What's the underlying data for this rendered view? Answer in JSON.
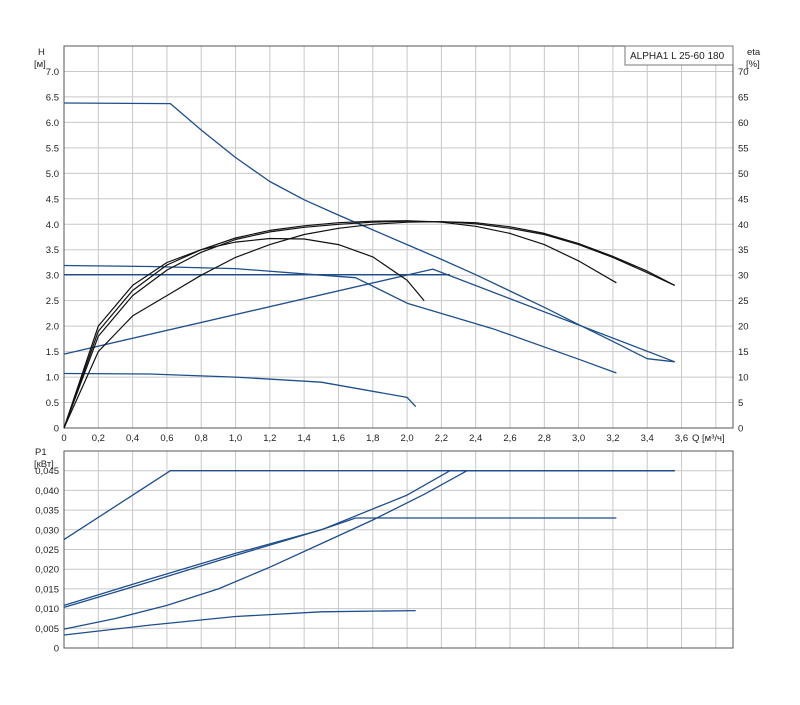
{
  "chart_data": [
    {
      "type": "line",
      "title": "",
      "legend_box": "ALPHA1 L 25-60 180",
      "legend_placement": "top-right",
      "xlabel": "Q [м³/ч]",
      "ylabel_left_name": "H",
      "ylabel_left_unit": "[м]",
      "ylabel_right_name": "eta",
      "ylabel_right_unit": "[%]",
      "xlim": [
        0,
        3.9
      ],
      "ylim": [
        0,
        7.5
      ],
      "y2lim": [
        0,
        75
      ],
      "x_ticks": [
        "0",
        "0,2",
        "0,4",
        "0,6",
        "0,8",
        "1,0",
        "1,2",
        "1,4",
        "1,6",
        "1,8",
        "2,0",
        "2,2",
        "2,4",
        "2,6",
        "2,8",
        "3,0",
        "3,2",
        "3,4",
        "3,6"
      ],
      "y_ticks": [
        "0",
        "0.5",
        "1.0",
        "1.5",
        "2.0",
        "2.5",
        "3.0",
        "3.5",
        "4.0",
        "4.5",
        "5.0",
        "5.5",
        "6.0",
        "6.5",
        "7.0"
      ],
      "y2_ticks": [
        "0",
        "5",
        "10",
        "15",
        "20",
        "25",
        "30",
        "35",
        "40",
        "45",
        "50",
        "55",
        "60",
        "65",
        "70"
      ],
      "grid": true,
      "series": [
        {
          "axis": "left",
          "color": "#1f4e8c",
          "x": [
            0,
            0.62,
            0.8,
            1.0,
            1.2,
            1.4,
            1.6,
            1.8,
            2.0,
            2.2,
            2.4,
            2.6,
            2.8,
            3.0,
            3.2,
            3.4,
            3.56
          ],
          "y": [
            6.38,
            6.37,
            5.85,
            5.31,
            4.84,
            4.48,
            4.18,
            3.89,
            3.6,
            3.31,
            3.01,
            2.69,
            2.37,
            2.03,
            1.7,
            1.36,
            1.3
          ]
        },
        {
          "axis": "left",
          "color": "#1f4e8c",
          "x": [
            0,
            0.5,
            1.0,
            1.5,
            1.7,
            2.0,
            2.5,
            3.0,
            3.22
          ],
          "y": [
            3.19,
            3.17,
            3.13,
            3.0,
            2.95,
            2.45,
            1.95,
            1.35,
            1.08
          ]
        },
        {
          "axis": "left",
          "color": "#1f4e8c",
          "x": [
            0,
            0.5,
            1.0,
            1.5,
            2.0,
            2.05
          ],
          "y": [
            1.07,
            1.06,
            1.0,
            0.9,
            0.6,
            0.42
          ]
        },
        {
          "axis": "left",
          "color": "#1f4e8c",
          "x": [
            0,
            2.25
          ],
          "y": [
            3.01,
            3.01
          ]
        },
        {
          "axis": "left",
          "color": "#1f4e8c",
          "x": [
            0,
            2.15,
            3.56
          ],
          "y": [
            1.45,
            3.12,
            1.3
          ]
        },
        {
          "axis": "right",
          "color": "#111111",
          "x": [
            0,
            0.2,
            0.4,
            0.6,
            0.8,
            1.0,
            1.2,
            1.4,
            1.6,
            1.8,
            2.0,
            2.2,
            2.4,
            2.6,
            2.8,
            3.0,
            3.2,
            3.4,
            3.56
          ],
          "y": [
            0,
            18,
            26,
            31,
            34.5,
            37,
            38.5,
            39.4,
            40,
            40.4,
            40.6,
            40.5,
            40.1,
            39.2,
            38,
            36,
            33.5,
            30.5,
            28
          ]
        },
        {
          "axis": "right",
          "color": "#111111",
          "x": [
            0,
            0.2,
            0.4,
            0.6,
            0.8,
            1.0,
            1.2,
            1.4,
            1.6,
            1.8,
            2.0,
            2.2,
            2.4,
            2.6,
            2.8,
            3.0,
            3.22
          ],
          "y": [
            0,
            19,
            27,
            32,
            35,
            37.3,
            38.8,
            39.7,
            40.3,
            40.6,
            40.7,
            40.4,
            39.6,
            38.2,
            36,
            32.8,
            28.5
          ]
        },
        {
          "axis": "right",
          "color": "#111111",
          "x": [
            0,
            0.2,
            0.4,
            0.6,
            0.8,
            1.0,
            1.2,
            1.4,
            1.6,
            1.8,
            2.0,
            2.1
          ],
          "y": [
            0,
            20,
            28,
            32.5,
            35,
            36.5,
            37.2,
            37.1,
            36,
            33.6,
            29,
            25
          ]
        },
        {
          "axis": "right",
          "color": "#111111",
          "x": [
            0,
            0.2,
            0.4,
            0.6,
            0.8,
            1.0,
            1.2,
            1.4,
            1.6,
            1.8,
            2.0,
            2.2,
            2.4,
            2.6,
            2.8,
            3.0,
            3.2,
            3.4,
            3.56
          ],
          "y": [
            0,
            15,
            22,
            26,
            30,
            33.5,
            36,
            38,
            39.2,
            40,
            40.4,
            40.5,
            40.3,
            39.5,
            38.2,
            36.2,
            33.7,
            30.8,
            28
          ]
        }
      ]
    },
    {
      "type": "line",
      "title": "",
      "xlabel": "",
      "ylabel_name": "P1",
      "ylabel_unit": "[кВт]",
      "xlim": [
        0,
        3.9
      ],
      "ylim": [
        0,
        0.05
      ],
      "y_ticks": [
        "0",
        "0,005",
        "0,010",
        "0,015",
        "0,020",
        "0,025",
        "0,030",
        "0,035",
        "0,040",
        "0,045"
      ],
      "grid": true,
      "series": [
        {
          "color": "#1f4e8c",
          "x": [
            0,
            0.62,
            3.56
          ],
          "y": [
            0.0275,
            0.045,
            0.045
          ]
        },
        {
          "color": "#1f4e8c",
          "x": [
            0,
            0.5,
            1.0,
            1.5,
            2.0,
            2.25,
            3.56
          ],
          "y": [
            0.0108,
            0.0175,
            0.024,
            0.03,
            0.0388,
            0.045,
            0.045
          ]
        },
        {
          "color": "#1f4e8c",
          "x": [
            0,
            0.5,
            1.0,
            1.5,
            1.7,
            3.22
          ],
          "y": [
            0.0103,
            0.0168,
            0.0235,
            0.03,
            0.033,
            0.033
          ]
        },
        {
          "color": "#1f4e8c",
          "x": [
            0,
            0.3,
            0.6,
            0.9,
            1.2,
            1.5,
            1.8,
            2.1,
            2.35,
            3.56
          ],
          "y": [
            0.0048,
            0.0075,
            0.0108,
            0.015,
            0.0205,
            0.0265,
            0.0325,
            0.039,
            0.045,
            0.045
          ]
        },
        {
          "color": "#1f4e8c",
          "x": [
            0,
            0.5,
            1.0,
            1.5,
            2.05
          ],
          "y": [
            0.0033,
            0.0058,
            0.008,
            0.0092,
            0.0095
          ]
        }
      ]
    }
  ]
}
